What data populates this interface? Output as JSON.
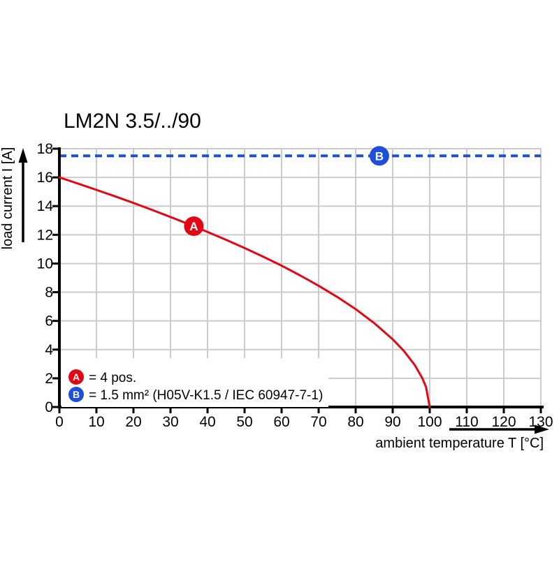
{
  "page": {
    "background": "#ffffff"
  },
  "chart_data": {
    "type": "line",
    "title": "LM2N 3.5/../90",
    "xlabel": "ambient temperature T [°C]",
    "ylabel": "load current I [A]",
    "xlim": [
      0,
      130
    ],
    "ylim": [
      0,
      18
    ],
    "x_ticks": [
      0,
      10,
      20,
      30,
      40,
      50,
      60,
      70,
      80,
      90,
      100,
      110,
      120,
      130
    ],
    "y_ticks": [
      0,
      2,
      4,
      6,
      8,
      10,
      12,
      14,
      16,
      18
    ],
    "grid": true,
    "grid_color": "#cbcbcb",
    "axis_color": "#000000",
    "series": [
      {
        "name": "derating-curve",
        "color": "#e30613",
        "style": "solid",
        "points": [
          [
            0,
            16.0
          ],
          [
            5,
            15.57
          ],
          [
            10,
            15.13
          ],
          [
            15,
            14.68
          ],
          [
            20,
            14.22
          ],
          [
            25,
            13.74
          ],
          [
            30,
            13.24
          ],
          [
            35,
            12.73
          ],
          [
            40,
            12.2
          ],
          [
            45,
            11.65
          ],
          [
            50,
            11.08
          ],
          [
            55,
            10.48
          ],
          [
            60,
            9.85
          ],
          [
            65,
            9.17
          ],
          [
            70,
            8.45
          ],
          [
            75,
            7.67
          ],
          [
            80,
            6.82
          ],
          [
            85,
            5.85
          ],
          [
            90,
            4.72
          ],
          [
            93,
            3.91
          ],
          [
            96,
            2.91
          ],
          [
            98,
            2.01
          ],
          [
            99,
            1.39
          ],
          [
            100,
            0
          ]
        ]
      },
      {
        "name": "max-current-reference",
        "color": "#1d4fdb",
        "style": "dashed",
        "value": 17.5,
        "x_range": [
          0,
          130
        ]
      }
    ],
    "markers": [
      {
        "label": "A",
        "x": 36.3,
        "y": 12.6,
        "color": "#e30613"
      },
      {
        "label": "B",
        "x": 86.4,
        "y": 17.5,
        "color": "#1d4fdb"
      }
    ],
    "legend": [
      {
        "label": "A",
        "color": "#e30613",
        "text": "= 4 pos."
      },
      {
        "label": "B",
        "color": "#1d4fdb",
        "text": "= 1.5 mm² (H05V-K1.5 / IEC 60947-7-1)"
      }
    ]
  }
}
